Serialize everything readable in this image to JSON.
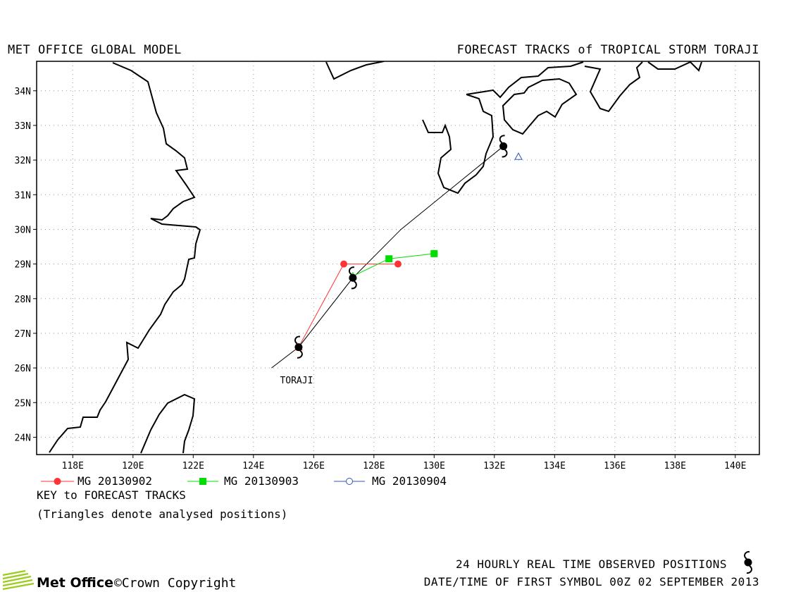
{
  "header": {
    "left": "MET OFFICE GLOBAL MODEL",
    "right": "FORECAST TRACKS of TROPICAL STORM TORAJI"
  },
  "map": {
    "lon_range": [
      116.8,
      140.8
    ],
    "lat_range": [
      23.5,
      34.85
    ],
    "lon_ticks": [
      118,
      120,
      122,
      124,
      126,
      128,
      130,
      132,
      134,
      136,
      138,
      140
    ],
    "lat_ticks": [
      24,
      25,
      26,
      27,
      28,
      29,
      30,
      31,
      32,
      33,
      34
    ],
    "lon_tick_labels": [
      "118E",
      "120E",
      "122E",
      "124E",
      "126E",
      "128E",
      "130E",
      "132E",
      "134E",
      "136E",
      "138E",
      "140E"
    ],
    "lat_tick_labels": [
      "24N",
      "25N",
      "26N",
      "27N",
      "28N",
      "29N",
      "30N",
      "31N",
      "32N",
      "33N",
      "34N"
    ],
    "grid": "dotted",
    "storm_label": "TORAJI",
    "observed_track": [
      [
        124.6,
        26.0
      ],
      [
        125.5,
        26.6
      ],
      [
        127.3,
        28.6
      ],
      [
        128.9,
        30.0
      ],
      [
        132.3,
        32.4
      ]
    ],
    "observed_positions": [
      [
        125.5,
        26.6
      ],
      [
        127.3,
        28.6
      ],
      [
        132.3,
        32.4
      ]
    ],
    "forecast_tracks": [
      {
        "name": "MG 20130902",
        "color": "#ff3333",
        "marker": "circle",
        "points": [
          [
            125.5,
            26.6
          ],
          [
            127.0,
            29.0
          ],
          [
            128.8,
            29.0
          ]
        ],
        "analysed": [
          [
            125.5,
            26.6
          ]
        ]
      },
      {
        "name": "MG 20130903",
        "color": "#00dd00",
        "marker": "square",
        "points": [
          [
            127.3,
            28.65
          ],
          [
            128.5,
            29.15
          ],
          [
            130.0,
            29.3
          ]
        ],
        "analysed": [
          [
            127.3,
            28.65
          ]
        ]
      },
      {
        "name": "MG 20130904",
        "color": "#3355bb",
        "marker": "circle-open",
        "points": [
          [
            132.8,
            32.1
          ]
        ],
        "analysed": [
          [
            132.8,
            32.1
          ]
        ]
      }
    ]
  },
  "legend": {
    "items": [
      {
        "label": "MG 20130902",
        "color": "#ff3333",
        "marker": "circle"
      },
      {
        "label": "MG 20130903",
        "color": "#00dd00",
        "marker": "square"
      },
      {
        "label": "MG 20130904",
        "color": "#3355bb",
        "marker": "circle-open"
      }
    ],
    "key_title": "KEY to FORECAST TRACKS",
    "key_note": "(Triangles denote analysed positions)"
  },
  "footer": {
    "observed": "24 HOURLY REAL TIME OBSERVED POSITIONS",
    "datetime": "DATE/TIME OF FIRST SYMBOL 00Z 02 SEPTEMBER 2013",
    "brand": "Met Office",
    "copyright": "©Crown Copyright"
  }
}
